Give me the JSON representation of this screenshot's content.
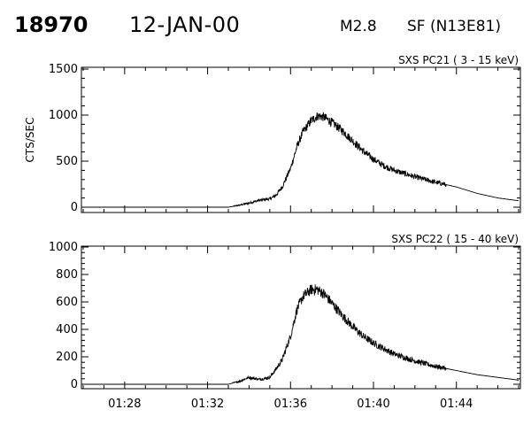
{
  "header": {
    "event_id": "18970",
    "date": "12-JAN-00",
    "flare_class": "M2.8",
    "location": "SF (N13E81)"
  },
  "chart_data": [
    {
      "type": "line",
      "title": "SXS PC21  (  3 - 15 keV)",
      "ylabel": "CTS/SEC",
      "xlim": [
        "01:26",
        "01:47"
      ],
      "ylim": [
        0,
        1500
      ],
      "yticks": [
        0,
        500,
        1000,
        1500
      ],
      "xticks": [
        "01:28",
        "01:32",
        "01:36",
        "01:40",
        "01:44"
      ],
      "grid": false,
      "series": [
        {
          "x": [
            "01:26",
            "01:29",
            "01:33",
            "01:33.5",
            "01:34",
            "01:34.5",
            "01:35",
            "01:35.3",
            "01:35.6",
            "01:36",
            "01:36.3",
            "01:36.6",
            "01:37",
            "01:37.3",
            "01:37.6",
            "01:38",
            "01:38.5",
            "01:39",
            "01:39.5",
            "01:40",
            "01:40.5",
            "01:41",
            "01:42",
            "01:43",
            "01:44",
            "01:45",
            "01:46",
            "01:47"
          ],
          "y": [
            0,
            0,
            0,
            20,
            45,
            75,
            90,
            130,
            220,
            420,
            650,
            820,
            940,
            990,
            980,
            920,
            830,
            720,
            610,
            520,
            450,
            400,
            330,
            270,
            220,
            150,
            100,
            70
          ]
        }
      ]
    },
    {
      "type": "line",
      "title": "SXS PC22  ( 15 - 40 keV)",
      "ylabel": "",
      "xlim": [
        "01:26",
        "01:47"
      ],
      "ylim": [
        0,
        1000
      ],
      "yticks": [
        0,
        200,
        400,
        600,
        800,
        1000
      ],
      "xticks": [
        "01:28",
        "01:32",
        "01:36",
        "01:40",
        "01:44"
      ],
      "grid": false,
      "series": [
        {
          "x": [
            "01:26",
            "01:29",
            "01:33",
            "01:33.5",
            "01:34",
            "01:34.5",
            "01:35",
            "01:35.3",
            "01:35.6",
            "01:36",
            "01:36.3",
            "01:36.6",
            "01:37",
            "01:37.3",
            "01:37.6",
            "01:38",
            "01:38.5",
            "01:39",
            "01:39.5",
            "01:40",
            "01:40.5",
            "01:41",
            "01:42",
            "01:43",
            "01:44",
            "01:45",
            "01:46",
            "01:47"
          ],
          "y": [
            0,
            0,
            0,
            20,
            50,
            35,
            50,
            110,
            180,
            350,
            540,
            640,
            690,
            690,
            660,
            590,
            500,
            420,
            350,
            300,
            260,
            220,
            170,
            130,
            100,
            70,
            50,
            30
          ]
        }
      ]
    }
  ]
}
